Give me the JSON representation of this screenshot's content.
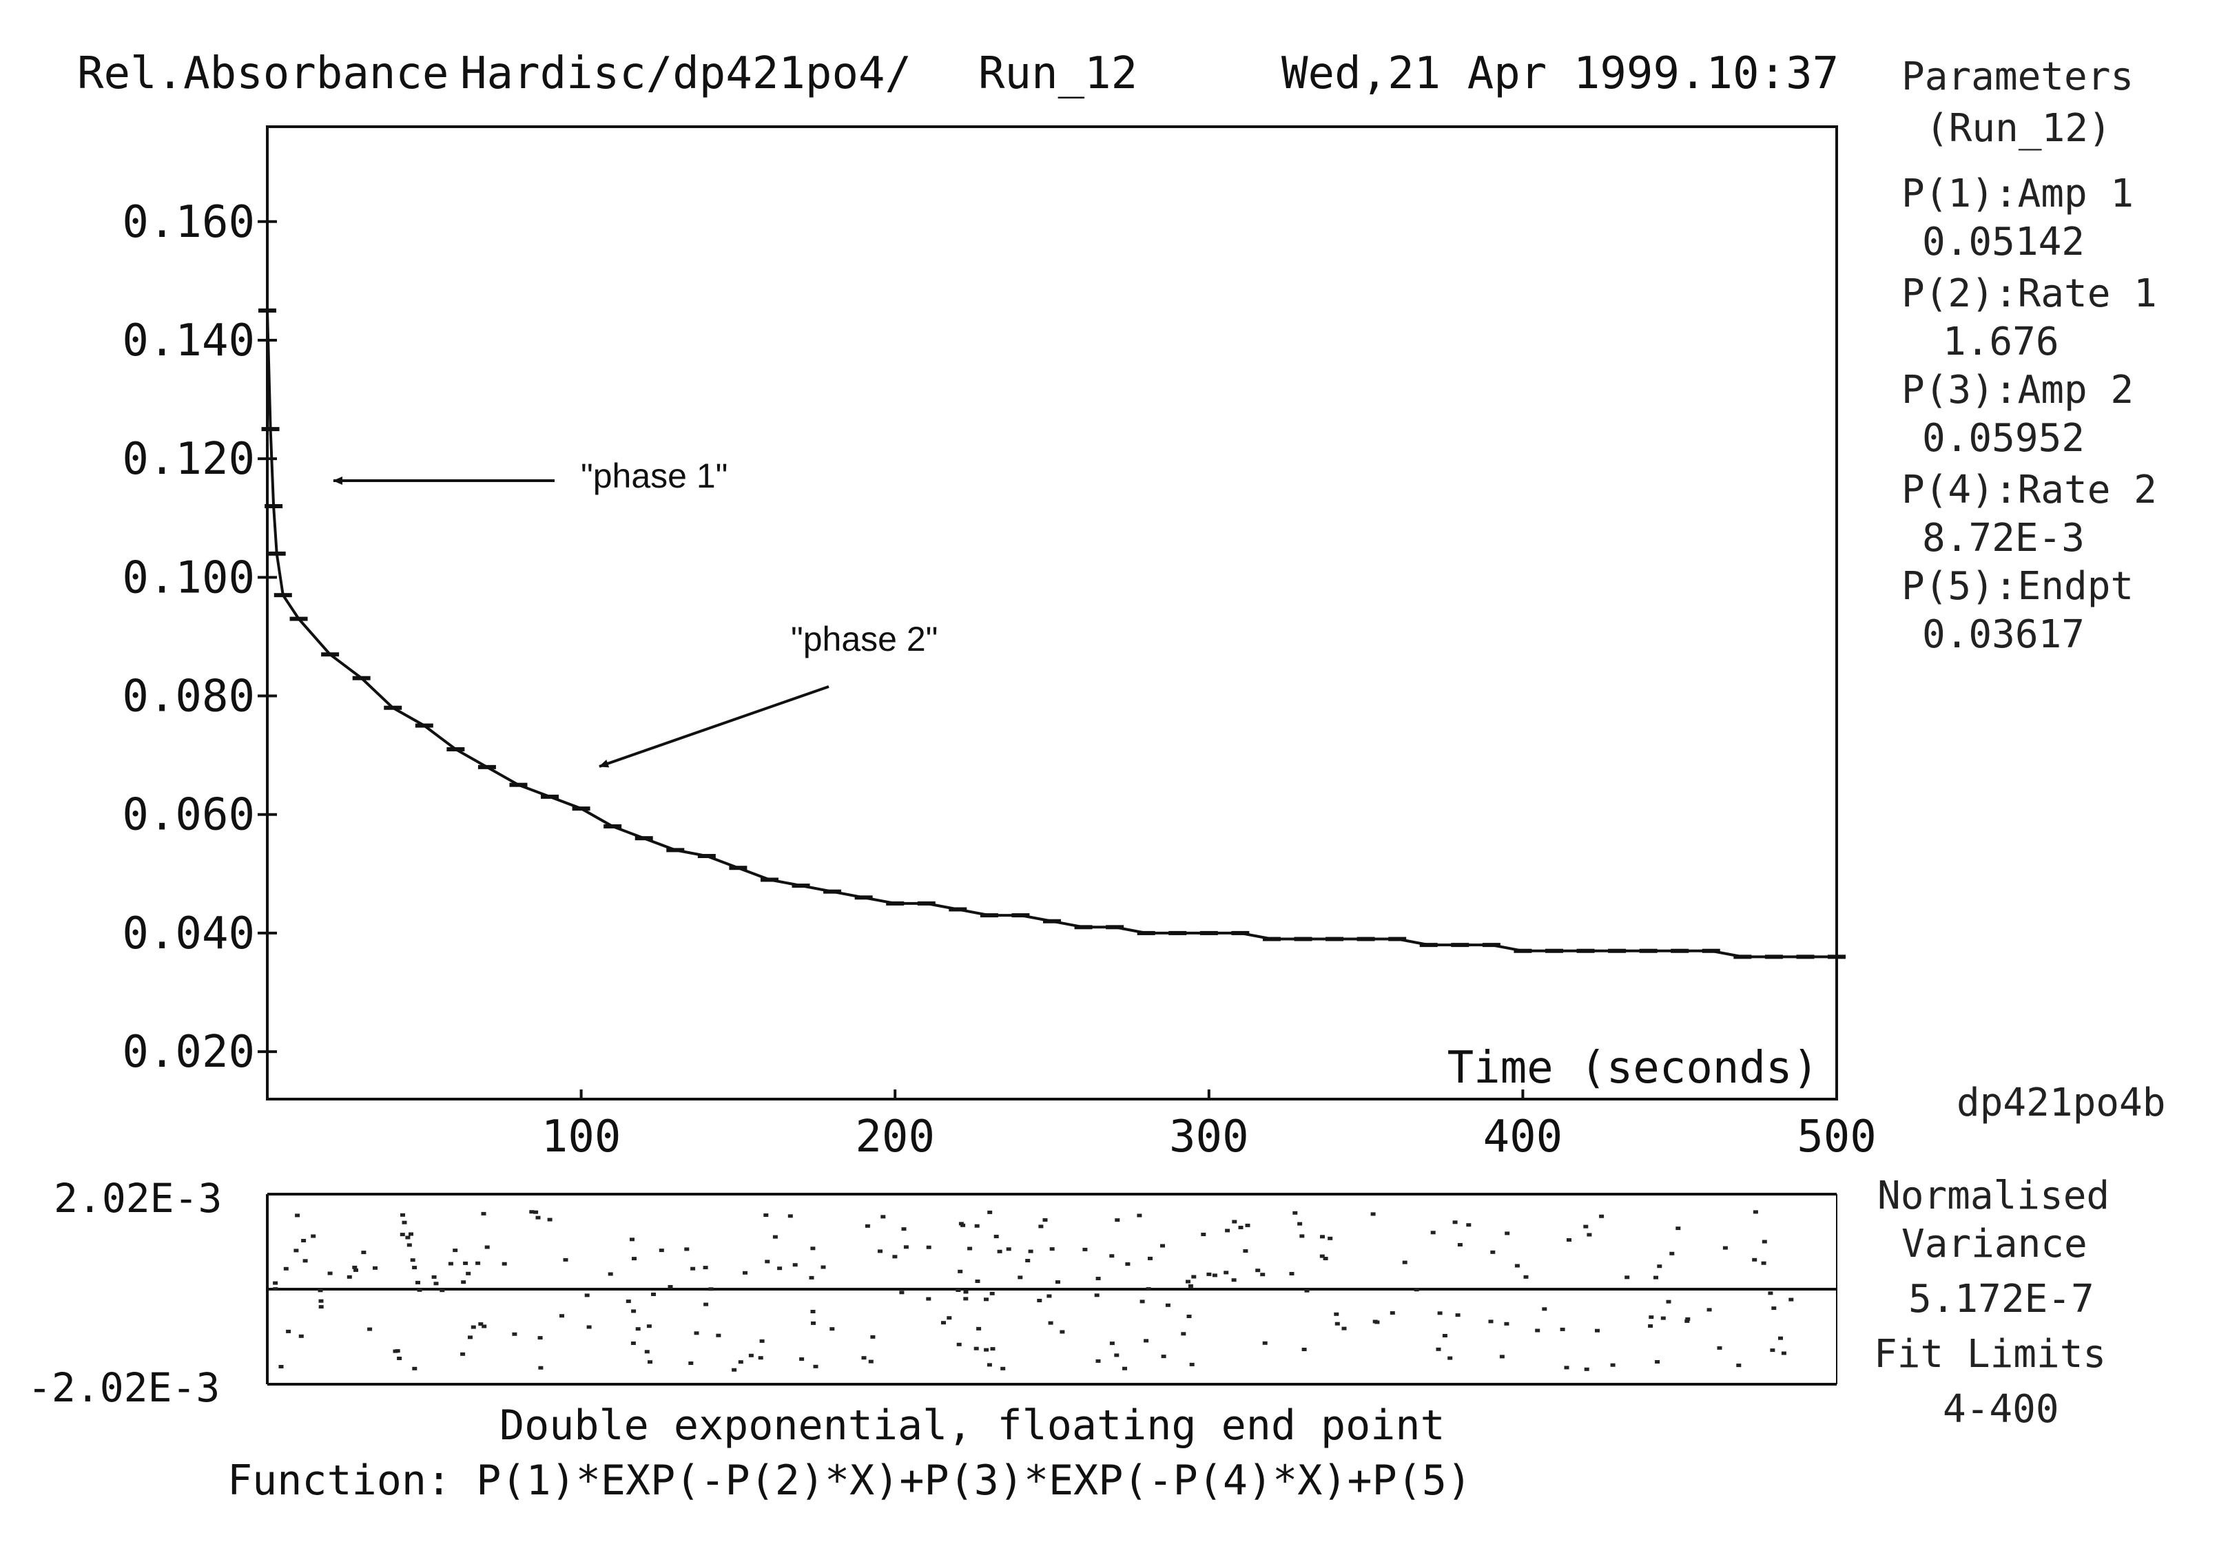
{
  "header": {
    "ylabel": "Rel.Absorbance",
    "file": "Hardisc/dp421po4/",
    "run": "Run_12",
    "datetime": "Wed,21 Apr 1999.10:37"
  },
  "parameters": {
    "title": "Parameters",
    "subtitle": "(Run_12)",
    "items": [
      {
        "label": "P(1):Amp 1",
        "value": "0.05142"
      },
      {
        "label": "P(2):Rate 1",
        "value": "1.676"
      },
      {
        "label": "P(3):Amp 2",
        "value": "0.05952"
      },
      {
        "label": "P(4):Rate 2",
        "value": "8.72E-3"
      },
      {
        "label": "P(5):Endpt",
        "value": "0.03617"
      }
    ],
    "file_id": "dp421po4b"
  },
  "annotations": {
    "phase1": "\"phase 1\"",
    "phase2": "\"phase 2\""
  },
  "residuals": {
    "max_label": "2.02E-3",
    "min_label": "-2.02E-3",
    "range": [
      -0.00202,
      0.00202
    ],
    "variance_label_1": "Normalised",
    "variance_label_2": "Variance",
    "variance_value": "5.172E-7",
    "fit_label": "Fit Limits",
    "fit_value": "4-400"
  },
  "footer": {
    "model": "Double exponential, floating end point",
    "function": "Function: P(1)*EXP(-P(2)*X)+P(3)*EXP(-P(4)*X)+P(5)"
  },
  "chart_data": {
    "type": "scatter",
    "title": "",
    "xlabel": "Time (seconds)",
    "ylabel": "Rel.Absorbance",
    "xlim": [
      0,
      500
    ],
    "ylim": [
      0.012,
      0.176
    ],
    "x_ticks": [
      100,
      200,
      300,
      400,
      500
    ],
    "x_tick_labels": [
      "100",
      "200",
      "300",
      "400",
      "500"
    ],
    "y_ticks": [
      0.02,
      0.04,
      0.06,
      0.08,
      0.1,
      0.12,
      0.14,
      0.16
    ],
    "y_tick_labels": [
      "0.020",
      "0.040",
      "0.060",
      "0.080",
      "0.100",
      "0.120",
      "0.140",
      "0.160"
    ],
    "grid": false,
    "series": [
      {
        "x": [
          0,
          1,
          2,
          3,
          5,
          10,
          20,
          30,
          40,
          50,
          60,
          70,
          80,
          90,
          100,
          110,
          120,
          130,
          140,
          150,
          160,
          170,
          180,
          190,
          200,
          210,
          220,
          230,
          240,
          250,
          260,
          270,
          280,
          290,
          300,
          310,
          320,
          330,
          340,
          350,
          360,
          370,
          380,
          390,
          400,
          410,
          420,
          430,
          440,
          450,
          460,
          470,
          480,
          490,
          500
        ],
        "values": [
          0.145,
          0.125,
          0.112,
          0.104,
          0.097,
          0.093,
          0.087,
          0.083,
          0.078,
          0.075,
          0.071,
          0.068,
          0.065,
          0.063,
          0.061,
          0.058,
          0.056,
          0.054,
          0.053,
          0.051,
          0.049,
          0.048,
          0.047,
          0.046,
          0.045,
          0.045,
          0.044,
          0.043,
          0.043,
          0.042,
          0.041,
          0.041,
          0.04,
          0.04,
          0.04,
          0.04,
          0.039,
          0.039,
          0.039,
          0.039,
          0.039,
          0.038,
          0.038,
          0.038,
          0.037,
          0.037,
          0.037,
          0.037,
          0.037,
          0.037,
          0.037,
          0.036,
          0.036,
          0.036,
          0.036
        ]
      }
    ]
  }
}
